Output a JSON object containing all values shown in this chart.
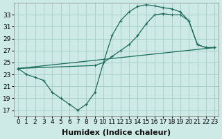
{
  "xlabel": "Humidex (Indice chaleur)",
  "background_color": "#ceeae6",
  "grid_color": "#aacfca",
  "line_color": "#1a6b5a",
  "xlim": [
    -0.5,
    23.5
  ],
  "ylim": [
    16,
    35
  ],
  "xticks": [
    0,
    1,
    2,
    3,
    4,
    5,
    6,
    7,
    8,
    9,
    10,
    11,
    12,
    13,
    14,
    15,
    16,
    17,
    18,
    19,
    20,
    21,
    22,
    23
  ],
  "yticks": [
    17,
    19,
    21,
    23,
    25,
    27,
    29,
    31,
    33
  ],
  "line1_x": [
    0,
    1,
    2,
    3,
    4,
    5,
    6,
    7,
    8,
    9,
    10,
    11,
    12,
    13,
    14,
    15,
    16,
    17,
    18,
    19,
    20,
    21,
    22,
    23
  ],
  "line1_y": [
    24,
    23,
    22.5,
    22,
    20,
    19,
    18,
    17,
    18,
    20,
    25,
    29.5,
    32,
    33.5,
    34.4,
    34.7,
    34.5,
    34.2,
    34,
    33.5,
    32,
    28,
    27.5,
    27.5
  ],
  "line2_x": [
    0,
    9,
    10,
    11,
    12,
    13,
    14,
    15,
    16,
    17,
    18,
    19,
    20,
    21,
    22,
    23
  ],
  "line2_y": [
    24,
    24.5,
    25,
    26,
    27,
    28,
    29.5,
    31.5,
    33,
    33.2,
    33,
    33,
    32,
    28,
    27.5,
    27.5
  ],
  "line3_x": [
    0,
    23
  ],
  "line3_y": [
    24,
    27.5
  ],
  "fontsize_label": 8,
  "tick_fontsize": 6.5
}
